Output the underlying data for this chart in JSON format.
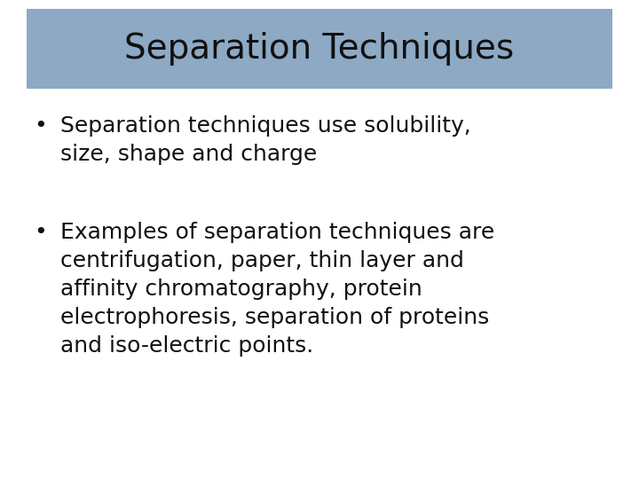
{
  "title": "Separation Techniques",
  "title_box_color": "#8da9c4",
  "background_color": "#ffffff",
  "text_color": "#111111",
  "title_fontsize": 28,
  "body_fontsize": 18,
  "bullet1_line1": "Separation techniques use solubility,",
  "bullet1_line2": "size, shape and charge",
  "bullet2_line1": "Examples of separation techniques are",
  "bullet2_line2": "centrifugation, paper, thin layer and",
  "bullet2_line3": "affinity chromatography, protein",
  "bullet2_line4": "electrophoresis, separation of proteins",
  "bullet2_line5": "and iso-electric points.",
  "font_family": "Comic Sans MS"
}
